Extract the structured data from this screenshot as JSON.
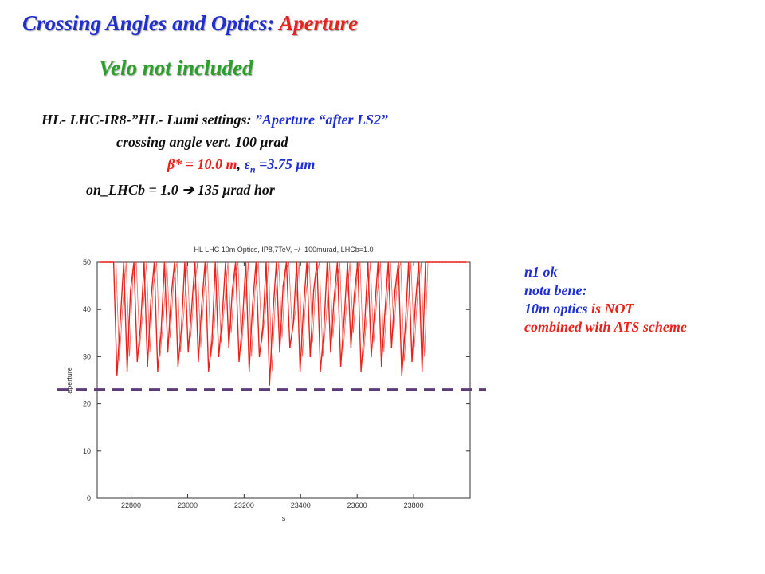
{
  "slide": {
    "title_main": "Crossing Angles and Optics: ",
    "title_accent": "Aperture",
    "subtitle": "Velo not included",
    "settings": {
      "line1_black": "HL- LHC-IR8-”HL- Lumi settings: ",
      "line1_blue": "”Aperture “after LS2”",
      "line2": "crossing angle vert. 100 μrad",
      "line3_beta": "β* = 10.0 m",
      "line3_comma": ", ",
      "line3_eps": "ε",
      "line3_sub": "n",
      "line3_rest": " =3.75 μm",
      "line4_a": "on_LHCb = 1.0  ",
      "line4_arrow": "➔",
      "line4_b": " 135 μrad hor"
    },
    "notes": {
      "line1": "n1 ok",
      "line2": "nota bene:",
      "line3_a": "10m optics ",
      "line3_b": "is NOT",
      "line4": "combined with ATS scheme"
    }
  },
  "colors": {
    "blue": "#1f2fd0",
    "red": "#e8231b",
    "green": "#2aa02a",
    "series": "#e8231b",
    "threshold": "#5b3c78"
  },
  "chart_data": {
    "type": "line",
    "title": "HL LHC 10m Optics, IP8,7TeV,  +/- 100murad, LHCb=1.0",
    "xlabel": "s",
    "ylabel": "aperture",
    "xlim": [
      22680,
      24000
    ],
    "ylim": [
      0,
      50
    ],
    "xticks": [
      22800,
      23000,
      23200,
      23400,
      23600,
      23800
    ],
    "yticks": [
      0,
      10,
      20,
      30,
      40,
      50
    ],
    "grid": false,
    "threshold": {
      "y": 23,
      "style": "dashed"
    },
    "series": [
      {
        "x": [
          22690,
          22702,
          22714,
          22726,
          22738,
          22750,
          22762,
          22774,
          22786,
          22798,
          22810,
          22822,
          22834,
          22846,
          22858,
          22870,
          22882,
          22894,
          22906,
          22918,
          22930,
          22942,
          22954,
          22966,
          22978,
          22990,
          23002,
          23014,
          23026,
          23038,
          23050,
          23062,
          23074,
          23086,
          23098,
          23110,
          23122,
          23134,
          23146,
          23158,
          23170,
          23182,
          23194,
          23206,
          23218,
          23230,
          23242,
          23254,
          23266,
          23278,
          23290,
          23302,
          23314,
          23326,
          23338,
          23350,
          23362,
          23374,
          23386,
          23398,
          23410,
          23422,
          23434,
          23446,
          23458,
          23470,
          23482,
          23494,
          23506,
          23518,
          23530,
          23542,
          23554,
          23566,
          23578,
          23590,
          23602,
          23614,
          23626,
          23638,
          23650,
          23662,
          23674,
          23686,
          23698,
          23710,
          23722,
          23734,
          23746,
          23758,
          23770,
          23782,
          23794,
          23806,
          23818,
          23830,
          23842,
          23854,
          23866,
          23878,
          23890,
          23902,
          23914,
          23926,
          23938,
          23950,
          23962,
          23974,
          23986
        ],
        "y": [
          50,
          50,
          50,
          50,
          50,
          26,
          38,
          50,
          27,
          44,
          50,
          29,
          37,
          50,
          28,
          42,
          50,
          27,
          35,
          50,
          31,
          43,
          50,
          28,
          36,
          50,
          31,
          40,
          50,
          29,
          41,
          50,
          27,
          33,
          50,
          30,
          38,
          50,
          32,
          44,
          50,
          29,
          37,
          50,
          27,
          41,
          50,
          30,
          36,
          50,
          24,
          39,
          50,
          31,
          45,
          50,
          32,
          37,
          50,
          27,
          40,
          50,
          30,
          44,
          50,
          27,
          35,
          50,
          31,
          42,
          50,
          28,
          38,
          50,
          32,
          43,
          50,
          27,
          36,
          50,
          30,
          40,
          50,
          28,
          39,
          50,
          32,
          44,
          50,
          26,
          36,
          50,
          29,
          41,
          50,
          27,
          50,
          50,
          50,
          50,
          50,
          50,
          50,
          50,
          50,
          50,
          50,
          50,
          50
        ]
      }
    ]
  }
}
